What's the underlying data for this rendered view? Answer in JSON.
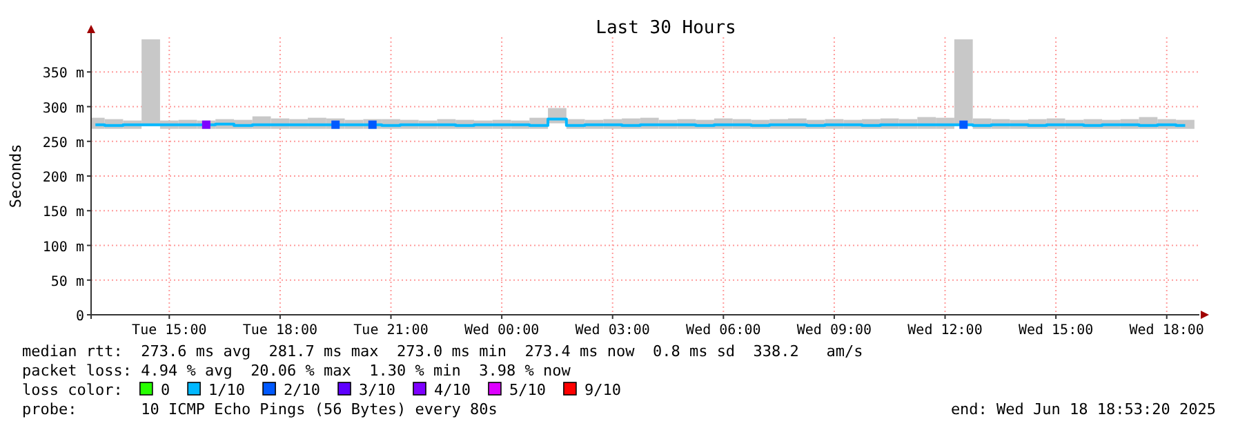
{
  "chart_data": {
    "type": "step",
    "title": "Last 30 Hours",
    "ylabel": "Seconds",
    "legend_title": "loss color:",
    "legend": "bottom",
    "x": [
      "2025-06-17T13:00",
      "2025-06-17T13:30",
      "2025-06-17T14:00",
      "2025-06-17T14:30",
      "2025-06-17T15:00",
      "2025-06-17T15:30",
      "2025-06-17T16:00",
      "2025-06-17T16:30",
      "2025-06-17T17:00",
      "2025-06-17T17:30",
      "2025-06-17T18:00",
      "2025-06-17T18:30",
      "2025-06-17T19:00",
      "2025-06-17T19:30",
      "2025-06-17T20:00",
      "2025-06-17T20:30",
      "2025-06-17T21:00",
      "2025-06-17T21:30",
      "2025-06-17T22:00",
      "2025-06-17T22:30",
      "2025-06-17T23:00",
      "2025-06-17T23:30",
      "2025-06-18T00:00",
      "2025-06-18T00:30",
      "2025-06-18T01:00",
      "2025-06-18T01:30",
      "2025-06-18T02:00",
      "2025-06-18T02:30",
      "2025-06-18T03:00",
      "2025-06-18T03:30",
      "2025-06-18T04:00",
      "2025-06-18T04:30",
      "2025-06-18T05:00",
      "2025-06-18T05:30",
      "2025-06-18T06:00",
      "2025-06-18T06:30",
      "2025-06-18T07:00",
      "2025-06-18T07:30",
      "2025-06-18T08:00",
      "2025-06-18T08:30",
      "2025-06-18T09:00",
      "2025-06-18T09:30",
      "2025-06-18T10:00",
      "2025-06-18T10:30",
      "2025-06-18T11:00",
      "2025-06-18T11:30",
      "2025-06-18T12:00",
      "2025-06-18T12:30",
      "2025-06-18T13:00",
      "2025-06-18T13:30",
      "2025-06-18T14:00",
      "2025-06-18T14:30",
      "2025-06-18T15:00",
      "2025-06-18T15:30",
      "2025-06-18T16:00",
      "2025-06-18T16:30",
      "2025-06-18T17:00",
      "2025-06-18T17:30",
      "2025-06-18T18:00",
      "2025-06-18T18:30"
    ],
    "series": [
      {
        "type": "bar",
        "color": "#c8c8c8",
        "base": [
          268,
          268,
          268,
          272,
          268,
          268,
          268,
          268,
          268,
          268,
          268,
          268,
          268,
          268,
          268,
          268,
          268,
          268,
          268,
          268,
          268,
          268,
          268,
          268,
          268,
          276,
          268,
          268,
          268,
          268,
          268,
          268,
          268,
          268,
          268,
          268,
          268,
          268,
          268,
          268,
          268,
          268,
          268,
          268,
          268,
          268,
          268,
          272,
          268,
          268,
          268,
          268,
          268,
          268,
          268,
          268,
          268,
          268,
          268,
          268
        ],
        "values": [
          16,
          14,
          12,
          125,
          12,
          13,
          12,
          14,
          13,
          18,
          15,
          14,
          16,
          15,
          13,
          14,
          14,
          13,
          12,
          14,
          13,
          12,
          13,
          12,
          16,
          22,
          14,
          13,
          14,
          15,
          16,
          13,
          14,
          13,
          15,
          14,
          13,
          14,
          15,
          13,
          14,
          13,
          14,
          15,
          14,
          17,
          16,
          125,
          15,
          14,
          13,
          14,
          15,
          13,
          14,
          13,
          14,
          17,
          14,
          13
        ]
      },
      {
        "name": "0",
        "type": "scatter",
        "color": "#26ff00",
        "marker": "square",
        "values": [
          null,
          null,
          null,
          null,
          null,
          null,
          null,
          null,
          null,
          null,
          null,
          null,
          null,
          null,
          null,
          null,
          null,
          null,
          null,
          null,
          null,
          null,
          null,
          null,
          null,
          null,
          null,
          null,
          null,
          null,
          null,
          null,
          null,
          null,
          null,
          null,
          null,
          null,
          null,
          null,
          null,
          null,
          null,
          null,
          null,
          null,
          null,
          null,
          null,
          null,
          null,
          null,
          null,
          null,
          null,
          null,
          null,
          null,
          null,
          null
        ]
      },
      {
        "name": "1/10",
        "color": "#00b8ff",
        "values": [
          274,
          273,
          274,
          274,
          274,
          274,
          274,
          275,
          273,
          274,
          274,
          274,
          274,
          274,
          274,
          274,
          273,
          274,
          274,
          274,
          273,
          274,
          274,
          274,
          273,
          282,
          273,
          274,
          274,
          273,
          274,
          274,
          274,
          273,
          274,
          274,
          273,
          274,
          274,
          273,
          274,
          274,
          273,
          274,
          274,
          274,
          274,
          274,
          273,
          274,
          274,
          273,
          274,
          274,
          273,
          274,
          274,
          273,
          274,
          273
        ]
      },
      {
        "name": "2/10",
        "type": "scatter",
        "color": "#0059ff",
        "marker": "square",
        "x": [
          "2025-06-17T19:30",
          "2025-06-17T20:30",
          "2025-06-18T12:30"
        ],
        "values": [
          274,
          274,
          274
        ]
      },
      {
        "name": "3/10",
        "type": "scatter",
        "color": "#5e00ff",
        "marker": "square",
        "values": [
          null,
          null,
          null,
          null,
          null,
          null,
          null,
          null,
          null,
          null,
          null,
          null,
          null,
          null,
          null,
          null,
          null,
          null,
          null,
          null,
          null,
          null,
          null,
          null,
          null,
          null,
          null,
          null,
          null,
          null,
          null,
          null,
          null,
          null,
          null,
          null,
          null,
          null,
          null,
          null,
          null,
          null,
          null,
          null,
          null,
          null,
          null,
          null,
          null,
          null,
          null,
          null,
          null,
          null,
          null,
          null,
          null,
          null,
          null,
          null
        ]
      },
      {
        "name": "4/10",
        "type": "scatter",
        "color": "#7e00ff",
        "marker": "square",
        "x": [
          "2025-06-17T16:00"
        ],
        "values": [
          274
        ]
      },
      {
        "name": "5/10",
        "type": "scatter",
        "color": "#dd00ff",
        "marker": "square",
        "values": [
          null,
          null,
          null,
          null,
          null,
          null,
          null,
          null,
          null,
          null,
          null,
          null,
          null,
          null,
          null,
          null,
          null,
          null,
          null,
          null,
          null,
          null,
          null,
          null,
          null,
          null,
          null,
          null,
          null,
          null,
          null,
          null,
          null,
          null,
          null,
          null,
          null,
          null,
          null,
          null,
          null,
          null,
          null,
          null,
          null,
          null,
          null,
          null,
          null,
          null,
          null,
          null,
          null,
          null,
          null,
          null,
          null,
          null,
          null,
          null
        ]
      },
      {
        "name": "9/10",
        "type": "scatter",
        "color": "#ff0000",
        "marker": "square",
        "values": [
          null,
          null,
          null,
          null,
          null,
          null,
          null,
          null,
          null,
          null,
          null,
          null,
          null,
          null,
          null,
          null,
          null,
          null,
          null,
          null,
          null,
          null,
          null,
          null,
          null,
          null,
          null,
          null,
          null,
          null,
          null,
          null,
          null,
          null,
          null,
          null,
          null,
          null,
          null,
          null,
          null,
          null,
          null,
          null,
          null,
          null,
          null,
          null,
          null,
          null,
          null,
          null,
          null,
          null,
          null,
          null,
          null,
          null,
          null,
          null
        ]
      }
    ],
    "xlim": [
      "2025-06-17T12:53",
      "2025-06-18T18:53"
    ],
    "xticks": [
      {
        "value": "2025-06-17T15:00",
        "label": "Tue 15:00"
      },
      {
        "value": "2025-06-17T18:00",
        "label": "Tue 18:00"
      },
      {
        "value": "2025-06-17T21:00",
        "label": "Tue 21:00"
      },
      {
        "value": "2025-06-18T00:00",
        "label": "Wed 00:00"
      },
      {
        "value": "2025-06-18T03:00",
        "label": "Wed 03:00"
      },
      {
        "value": "2025-06-18T06:00",
        "label": "Wed 06:00"
      },
      {
        "value": "2025-06-18T09:00",
        "label": "Wed 09:00"
      },
      {
        "value": "2025-06-18T12:00",
        "label": "Wed 12:00"
      },
      {
        "value": "2025-06-18T15:00",
        "label": "Wed 15:00"
      },
      {
        "value": "2025-06-18T18:00",
        "label": "Wed 18:00"
      }
    ],
    "ylim": [
      0,
      400
    ],
    "yticks": [
      0,
      {
        "value": 50,
        "label": "50 m"
      },
      {
        "value": 100,
        "label": "100 m"
      },
      {
        "value": 150,
        "label": "150 m"
      },
      {
        "value": 200,
        "label": "200 m"
      },
      {
        "value": 250,
        "label": "250 m"
      },
      {
        "value": 300,
        "label": "300 m"
      },
      {
        "value": 350,
        "label": "350 m"
      }
    ],
    "grid": true,
    "annotations": [
      "median rtt:  273.6 ms avg  281.7 ms max  273.0 ms min  273.4 ms now  0.8 ms sd  338.2   am/s",
      "packet loss: 4.94 % avg  20.06 % max  1.30 % min  3.98 % now",
      "probe:       10 ICMP Echo Pings (56 Bytes) every 80s",
      "end: Wed Jun 18 18:53:20 2025"
    ]
  }
}
